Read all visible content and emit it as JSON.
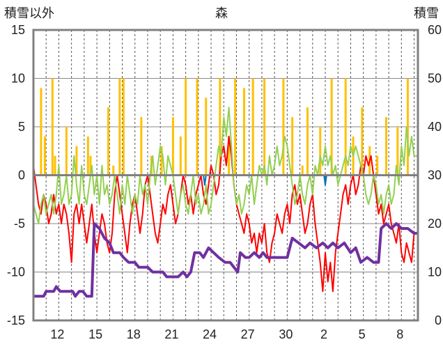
{
  "chart_data": {
    "type": "line",
    "title": "森",
    "left_axis_label": "積雪以外",
    "right_axis_label": "積雪",
    "y_left": {
      "min": -15,
      "max": 15,
      "ticks": [
        15,
        10,
        5,
        0,
        -5,
        -10,
        -15
      ]
    },
    "y_right": {
      "min": 0,
      "max": 60,
      "ticks": [
        60,
        50,
        40,
        30,
        20,
        10,
        0
      ]
    },
    "x_tick_labels": [
      "12",
      "15",
      "18",
      "21",
      "24",
      "27",
      "30",
      "2",
      "5",
      "8"
    ],
    "x_tick_days": [
      2,
      5,
      8,
      11,
      14,
      17,
      20,
      23,
      26,
      29
    ],
    "x_range": [
      0,
      30.3
    ],
    "grid": "vertical dashed daily lines, horizontal lines at left-axis 10, 5, -5, -10",
    "colors": {
      "precipitation": "#FFC000",
      "temperature": "#FF0000",
      "sunshine": "#92D050",
      "snow_depth": "#7030A0",
      "wind": "#0070C0",
      "zero_line": "#808080",
      "frame": "#808080"
    },
    "precipitation_bars": [
      [
        0.6,
        9
      ],
      [
        0.9,
        4
      ],
      [
        1.5,
        10
      ],
      [
        1.7,
        2
      ],
      [
        2.6,
        5
      ],
      [
        3.4,
        3
      ],
      [
        4.3,
        4
      ],
      [
        4.5,
        2
      ],
      [
        5.9,
        7
      ],
      [
        6.3,
        1
      ],
      [
        6.8,
        10
      ],
      [
        7.1,
        10
      ],
      [
        8.5,
        6
      ],
      [
        9.3,
        2
      ],
      [
        10.1,
        3
      ],
      [
        11.0,
        6
      ],
      [
        11.6,
        4
      ],
      [
        12.0,
        10
      ],
      [
        12.9,
        10
      ],
      [
        13.6,
        8
      ],
      [
        14.7,
        10
      ],
      [
        15.4,
        4
      ],
      [
        15.9,
        10
      ],
      [
        16.6,
        9
      ],
      [
        17.3,
        10
      ],
      [
        18.2,
        10
      ],
      [
        19.7,
        10
      ],
      [
        20.4,
        6
      ],
      [
        21.2,
        1
      ],
      [
        21.6,
        7
      ],
      [
        22.6,
        5
      ],
      [
        23.5,
        10
      ],
      [
        24.6,
        10
      ],
      [
        25.2,
        4
      ],
      [
        25.9,
        7
      ],
      [
        26.5,
        3
      ],
      [
        27.1,
        2
      ],
      [
        27.8,
        6
      ],
      [
        28.7,
        5
      ],
      [
        29.5,
        10
      ]
    ],
    "snow_depth": [
      [
        0,
        5
      ],
      [
        0.8,
        5
      ],
      [
        1.0,
        6
      ],
      [
        1.6,
        6
      ],
      [
        1.8,
        7
      ],
      [
        2.1,
        6
      ],
      [
        3.1,
        6
      ],
      [
        3.3,
        5
      ],
      [
        3.6,
        6
      ],
      [
        3.9,
        6
      ],
      [
        4.2,
        5
      ],
      [
        4.6,
        5
      ],
      [
        4.8,
        20
      ],
      [
        5.2,
        19
      ],
      [
        5.6,
        17
      ],
      [
        6.0,
        16
      ],
      [
        6.3,
        14
      ],
      [
        6.8,
        14
      ],
      [
        7.1,
        13
      ],
      [
        7.5,
        12
      ],
      [
        8.0,
        12
      ],
      [
        8.3,
        11
      ],
      [
        9.0,
        11
      ],
      [
        9.4,
        10
      ],
      [
        9.8,
        10
      ],
      [
        10.2,
        10
      ],
      [
        10.5,
        9
      ],
      [
        11.4,
        9
      ],
      [
        11.8,
        10
      ],
      [
        12.1,
        9
      ],
      [
        12.4,
        10
      ],
      [
        12.7,
        14
      ],
      [
        13.1,
        14
      ],
      [
        13.4,
        13
      ],
      [
        13.8,
        15
      ],
      [
        14.2,
        14
      ],
      [
        14.6,
        13
      ],
      [
        15.1,
        12
      ],
      [
        15.5,
        12
      ],
      [
        15.8,
        11
      ],
      [
        16.1,
        10
      ],
      [
        16.3,
        14
      ],
      [
        16.7,
        13
      ],
      [
        17.0,
        13
      ],
      [
        17.4,
        14
      ],
      [
        17.8,
        13
      ],
      [
        18.1,
        14
      ],
      [
        18.4,
        13
      ],
      [
        19.0,
        13
      ],
      [
        19.5,
        13
      ],
      [
        20.0,
        13
      ],
      [
        20.4,
        17
      ],
      [
        20.9,
        16
      ],
      [
        21.4,
        15
      ],
      [
        21.8,
        16
      ],
      [
        22.3,
        15
      ],
      [
        22.8,
        16
      ],
      [
        23.2,
        15
      ],
      [
        23.6,
        16
      ],
      [
        24.0,
        15
      ],
      [
        24.5,
        16
      ],
      [
        25.0,
        14
      ],
      [
        25.4,
        15
      ],
      [
        25.8,
        12
      ],
      [
        26.3,
        13
      ],
      [
        26.8,
        12
      ],
      [
        27.2,
        12
      ],
      [
        27.4,
        19
      ],
      [
        27.8,
        20
      ],
      [
        28.2,
        19
      ],
      [
        28.6,
        20
      ],
      [
        29.0,
        19
      ],
      [
        29.5,
        19
      ],
      [
        30.0,
        18
      ],
      [
        30.3,
        18
      ]
    ],
    "temperature": [
      [
        0,
        1
      ],
      [
        0.2,
        -1
      ],
      [
        0.4,
        -3
      ],
      [
        0.6,
        -4
      ],
      [
        0.8,
        -2
      ],
      [
        1.0,
        -3
      ],
      [
        1.2,
        -5
      ],
      [
        1.4,
        -4
      ],
      [
        1.6,
        -2
      ],
      [
        1.8,
        -4
      ],
      [
        2.0,
        -3
      ],
      [
        2.2,
        -5
      ],
      [
        2.4,
        -3
      ],
      [
        2.6,
        -4
      ],
      [
        2.8,
        -6
      ],
      [
        3.0,
        -9
      ],
      [
        3.2,
        -4
      ],
      [
        3.4,
        -3
      ],
      [
        3.6,
        -5
      ],
      [
        3.8,
        -3
      ],
      [
        4.0,
        -5
      ],
      [
        4.2,
        -7
      ],
      [
        4.4,
        -5
      ],
      [
        4.6,
        -3
      ],
      [
        4.8,
        -6
      ],
      [
        5.0,
        -8
      ],
      [
        5.2,
        -6
      ],
      [
        5.4,
        -4
      ],
      [
        5.6,
        -5
      ],
      [
        5.8,
        -7
      ],
      [
        6.0,
        -8
      ],
      [
        6.2,
        -6
      ],
      [
        6.4,
        -2
      ],
      [
        6.6,
        0
      ],
      [
        6.8,
        -2
      ],
      [
        7.0,
        -4
      ],
      [
        7.2,
        -6
      ],
      [
        7.4,
        -8
      ],
      [
        7.6,
        -5
      ],
      [
        7.8,
        -3
      ],
      [
        8.0,
        -2
      ],
      [
        8.2,
        -4
      ],
      [
        8.4,
        -6
      ],
      [
        8.6,
        -4
      ],
      [
        8.8,
        -1
      ],
      [
        9.0,
        0
      ],
      [
        9.2,
        -2
      ],
      [
        9.4,
        -4
      ],
      [
        9.6,
        -6
      ],
      [
        9.8,
        -7
      ],
      [
        10.0,
        -5
      ],
      [
        10.2,
        -3
      ],
      [
        10.4,
        -4
      ],
      [
        10.6,
        -2
      ],
      [
        10.8,
        -1
      ],
      [
        11.0,
        -3
      ],
      [
        11.2,
        -5
      ],
      [
        11.4,
        -4
      ],
      [
        11.6,
        -2
      ],
      [
        11.8,
        0
      ],
      [
        12.0,
        -1
      ],
      [
        12.2,
        -3
      ],
      [
        12.4,
        -2
      ],
      [
        12.6,
        -4
      ],
      [
        12.8,
        -2
      ],
      [
        13.0,
        -1
      ],
      [
        13.2,
        0
      ],
      [
        13.4,
        -2
      ],
      [
        13.6,
        -3
      ],
      [
        13.8,
        -1
      ],
      [
        14.0,
        1
      ],
      [
        14.2,
        0
      ],
      [
        14.4,
        -2
      ],
      [
        14.6,
        -1
      ],
      [
        14.8,
        2
      ],
      [
        15.0,
        3
      ],
      [
        15.2,
        1
      ],
      [
        15.4,
        4
      ],
      [
        15.6,
        2
      ],
      [
        15.8,
        -1
      ],
      [
        16.0,
        -3
      ],
      [
        16.2,
        -4
      ],
      [
        16.4,
        -5
      ],
      [
        16.6,
        -6
      ],
      [
        16.8,
        -4
      ],
      [
        17.0,
        -5
      ],
      [
        17.2,
        -7
      ],
      [
        17.4,
        -6
      ],
      [
        17.6,
        -8
      ],
      [
        17.8,
        -6
      ],
      [
        18.0,
        -7
      ],
      [
        18.2,
        -5
      ],
      [
        18.4,
        -8
      ],
      [
        18.6,
        -9
      ],
      [
        18.8,
        -7
      ],
      [
        19.0,
        -6
      ],
      [
        19.2,
        -4
      ],
      [
        19.4,
        -5
      ],
      [
        19.6,
        -6
      ],
      [
        19.8,
        -4
      ],
      [
        20.0,
        -3
      ],
      [
        20.2,
        -5
      ],
      [
        20.4,
        -2
      ],
      [
        20.6,
        -1
      ],
      [
        20.8,
        -3
      ],
      [
        21.0,
        -2
      ],
      [
        21.2,
        -4
      ],
      [
        21.4,
        -6
      ],
      [
        21.6,
        -5
      ],
      [
        21.8,
        -3
      ],
      [
        22.0,
        -2
      ],
      [
        22.2,
        -5
      ],
      [
        22.4,
        -7
      ],
      [
        22.6,
        -9
      ],
      [
        22.8,
        -12
      ],
      [
        23.0,
        -8
      ],
      [
        23.2,
        -11
      ],
      [
        23.4,
        -9
      ],
      [
        23.6,
        -12
      ],
      [
        23.8,
        -8
      ],
      [
        24.0,
        -6
      ],
      [
        24.2,
        -4
      ],
      [
        24.4,
        -2
      ],
      [
        24.6,
        -1
      ],
      [
        24.8,
        -3
      ],
      [
        25.0,
        -1
      ],
      [
        25.2,
        0
      ],
      [
        25.4,
        -2
      ],
      [
        25.6,
        -1
      ],
      [
        25.8,
        1
      ],
      [
        26.0,
        0
      ],
      [
        26.2,
        2
      ],
      [
        26.4,
        1
      ],
      [
        26.6,
        2
      ],
      [
        26.8,
        0
      ],
      [
        27.0,
        -2
      ],
      [
        27.2,
        -4
      ],
      [
        27.4,
        -3
      ],
      [
        27.6,
        -5
      ],
      [
        27.8,
        -4
      ],
      [
        28.0,
        -3
      ],
      [
        28.2,
        -5
      ],
      [
        28.4,
        -6
      ],
      [
        28.6,
        -7
      ],
      [
        28.8,
        -5
      ],
      [
        29.0,
        -8
      ],
      [
        29.2,
        -9
      ],
      [
        29.4,
        -7
      ],
      [
        29.6,
        -8
      ],
      [
        29.8,
        -9
      ],
      [
        30.0,
        -6
      ],
      [
        30.3,
        -6
      ]
    ],
    "sunshine": [
      [
        0,
        -3
      ],
      [
        0.2,
        -4
      ],
      [
        0.4,
        -5
      ],
      [
        0.6,
        -3
      ],
      [
        0.8,
        -2
      ],
      [
        1.0,
        -4
      ],
      [
        1.2,
        -3
      ],
      [
        1.4,
        -2
      ],
      [
        1.6,
        -4
      ],
      [
        1.8,
        -2
      ],
      [
        2.0,
        1
      ],
      [
        2.2,
        -3
      ],
      [
        2.4,
        -2
      ],
      [
        2.6,
        0
      ],
      [
        2.8,
        -3
      ],
      [
        3.0,
        -2
      ],
      [
        3.2,
        2
      ],
      [
        3.4,
        -1
      ],
      [
        3.6,
        -3
      ],
      [
        3.8,
        1
      ],
      [
        4.0,
        -2
      ],
      [
        4.2,
        -3
      ],
      [
        4.4,
        -1
      ],
      [
        4.6,
        1
      ],
      [
        4.8,
        -2
      ],
      [
        5.0,
        0
      ],
      [
        5.2,
        -3
      ],
      [
        5.4,
        1
      ],
      [
        5.6,
        -2
      ],
      [
        5.8,
        -1
      ],
      [
        6.0,
        -3
      ],
      [
        6.2,
        -2
      ],
      [
        6.4,
        0
      ],
      [
        6.6,
        -2
      ],
      [
        6.8,
        -4
      ],
      [
        7.0,
        -1
      ],
      [
        7.2,
        -3
      ],
      [
        7.4,
        0
      ],
      [
        7.6,
        -2
      ],
      [
        7.8,
        -4
      ],
      [
        8.0,
        -2
      ],
      [
        8.2,
        -3
      ],
      [
        8.4,
        0
      ],
      [
        8.6,
        -2
      ],
      [
        8.8,
        -1
      ],
      [
        9.0,
        -3
      ],
      [
        9.2,
        0
      ],
      [
        9.4,
        2
      ],
      [
        9.6,
        -1
      ],
      [
        9.8,
        1
      ],
      [
        10.0,
        3
      ],
      [
        10.2,
        2
      ],
      [
        10.4,
        -1
      ],
      [
        10.6,
        2
      ],
      [
        10.8,
        1
      ],
      [
        11.0,
        0
      ],
      [
        11.2,
        -2
      ],
      [
        11.4,
        -4
      ],
      [
        11.6,
        -2
      ],
      [
        11.8,
        -1
      ],
      [
        12.0,
        -3
      ],
      [
        12.2,
        -4
      ],
      [
        12.4,
        -2
      ],
      [
        12.6,
        0
      ],
      [
        12.8,
        -3
      ],
      [
        13.0,
        -2
      ],
      [
        13.2,
        -4
      ],
      [
        13.4,
        -3
      ],
      [
        13.6,
        -1
      ],
      [
        13.8,
        -4
      ],
      [
        14.0,
        -3
      ],
      [
        14.2,
        -1
      ],
      [
        14.4,
        1
      ],
      [
        14.6,
        3
      ],
      [
        14.8,
        2
      ],
      [
        15.0,
        6
      ],
      [
        15.2,
        4
      ],
      [
        15.4,
        7
      ],
      [
        15.6,
        3
      ],
      [
        15.8,
        -1
      ],
      [
        16.0,
        -3
      ],
      [
        16.2,
        -2
      ],
      [
        16.4,
        -4
      ],
      [
        16.6,
        -3
      ],
      [
        16.8,
        -1
      ],
      [
        17.0,
        -2
      ],
      [
        17.2,
        0
      ],
      [
        17.4,
        -3
      ],
      [
        17.6,
        -1
      ],
      [
        17.8,
        1
      ],
      [
        18.0,
        0
      ],
      [
        18.2,
        1
      ],
      [
        18.4,
        -1
      ],
      [
        18.6,
        2
      ],
      [
        18.8,
        0
      ],
      [
        19.0,
        1
      ],
      [
        19.2,
        3
      ],
      [
        19.4,
        1
      ],
      [
        19.6,
        2
      ],
      [
        19.8,
        4
      ],
      [
        20.0,
        3
      ],
      [
        20.2,
        1
      ],
      [
        20.4,
        -1
      ],
      [
        20.6,
        -3
      ],
      [
        20.8,
        -2
      ],
      [
        21.0,
        0
      ],
      [
        21.2,
        -2
      ],
      [
        21.4,
        -3
      ],
      [
        21.6,
        -1
      ],
      [
        21.8,
        0
      ],
      [
        22.0,
        -2
      ],
      [
        22.2,
        1
      ],
      [
        22.4,
        0
      ],
      [
        22.6,
        2
      ],
      [
        22.8,
        1
      ],
      [
        23.0,
        3
      ],
      [
        23.2,
        1
      ],
      [
        23.4,
        2
      ],
      [
        23.6,
        0
      ],
      [
        23.8,
        1
      ],
      [
        24.0,
        -1
      ],
      [
        24.2,
        0
      ],
      [
        24.4,
        1
      ],
      [
        24.6,
        2
      ],
      [
        24.8,
        1
      ],
      [
        25.0,
        3
      ],
      [
        25.2,
        2
      ],
      [
        25.4,
        3
      ],
      [
        25.6,
        2
      ],
      [
        25.8,
        1
      ],
      [
        26.0,
        0
      ],
      [
        26.2,
        -2
      ],
      [
        26.4,
        -3
      ],
      [
        26.6,
        -2
      ],
      [
        26.8,
        0
      ],
      [
        27.0,
        -1
      ],
      [
        27.2,
        -3
      ],
      [
        27.4,
        -2
      ],
      [
        27.6,
        -4
      ],
      [
        27.8,
        -2
      ],
      [
        28.0,
        -1
      ],
      [
        28.2,
        -3
      ],
      [
        28.4,
        -2
      ],
      [
        28.6,
        1
      ],
      [
        28.8,
        -1
      ],
      [
        29.0,
        3
      ],
      [
        29.2,
        1
      ],
      [
        29.4,
        5
      ],
      [
        29.6,
        2
      ],
      [
        29.8,
        4
      ],
      [
        30.0,
        2
      ],
      [
        30.3,
        2
      ]
    ],
    "wind": [
      [
        0.0,
        0
      ],
      [
        9.0,
        0
      ],
      [
        9.1,
        -1
      ],
      [
        9.2,
        0
      ],
      [
        13.4,
        0
      ],
      [
        13.5,
        -1
      ],
      [
        13.6,
        0
      ],
      [
        22.9,
        0
      ],
      [
        23.0,
        -1
      ],
      [
        23.1,
        0
      ],
      [
        30.3,
        0
      ]
    ]
  }
}
